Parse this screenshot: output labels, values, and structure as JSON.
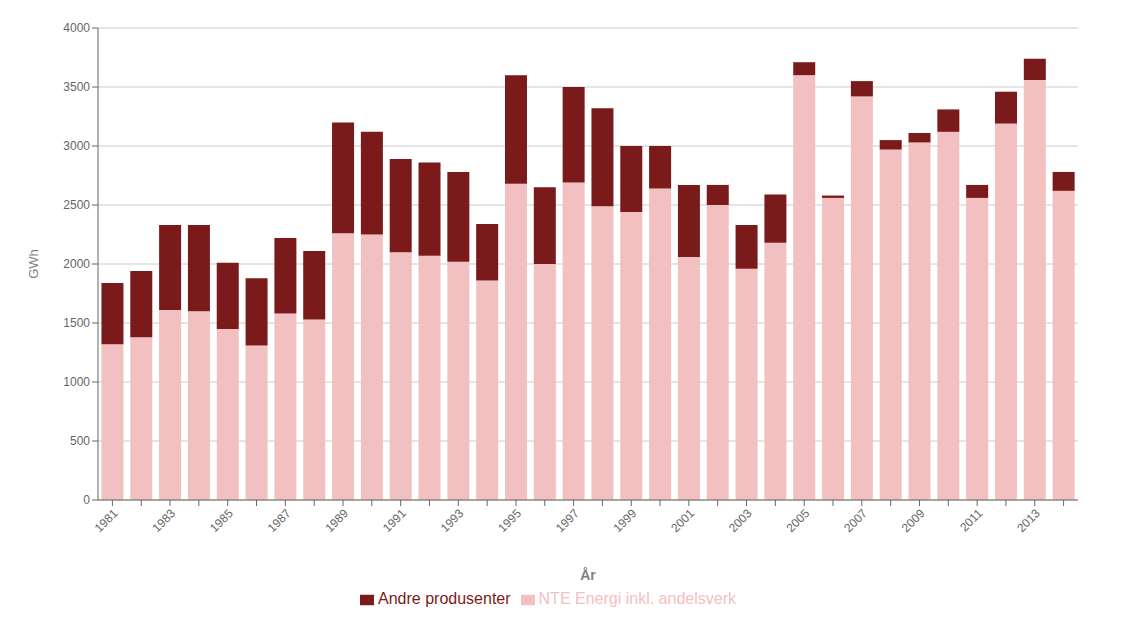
{
  "chart_data": {
    "type": "bar",
    "stacked": true,
    "xlabel": "År",
    "ylabel": "GWh",
    "categories": [
      "1981",
      null,
      "1983",
      null,
      "1985",
      null,
      "1987",
      null,
      "1989",
      null,
      "1991",
      null,
      "1993",
      null,
      "1995",
      null,
      "1997",
      null,
      "1999",
      null,
      "2001",
      null,
      "2003",
      null,
      "2005",
      null,
      "2007",
      null,
      "2009",
      null,
      "2011",
      null,
      "2013",
      null
    ],
    "series": [
      {
        "name": "NTE Energi inkl. andelsverk",
        "color": "#f2c0c0",
        "values": [
          1320,
          1380,
          1610,
          1600,
          1450,
          1310,
          1580,
          1530,
          2260,
          2250,
          2100,
          2070,
          2020,
          1860,
          2680,
          2000,
          2690,
          2490,
          2440,
          2640,
          2060,
          2500,
          1960,
          2180,
          3600,
          2560,
          3420,
          2970,
          3030,
          3120,
          2560,
          3190,
          3560,
          2620
        ]
      },
      {
        "name": "Andre produsenter",
        "color": "#7b1a1a",
        "values": [
          520,
          560,
          720,
          730,
          560,
          570,
          640,
          580,
          940,
          870,
          790,
          790,
          760,
          480,
          920,
          650,
          810,
          830,
          560,
          360,
          610,
          170,
          370,
          410,
          110,
          20,
          130,
          80,
          80,
          190,
          110,
          270,
          180,
          160
        ]
      }
    ],
    "ylim": [
      0,
      4000
    ],
    "yticks": [
      0,
      500,
      1000,
      1500,
      2000,
      2500,
      3000,
      3500,
      4000
    ],
    "grid": true,
    "legend": "bottom"
  }
}
